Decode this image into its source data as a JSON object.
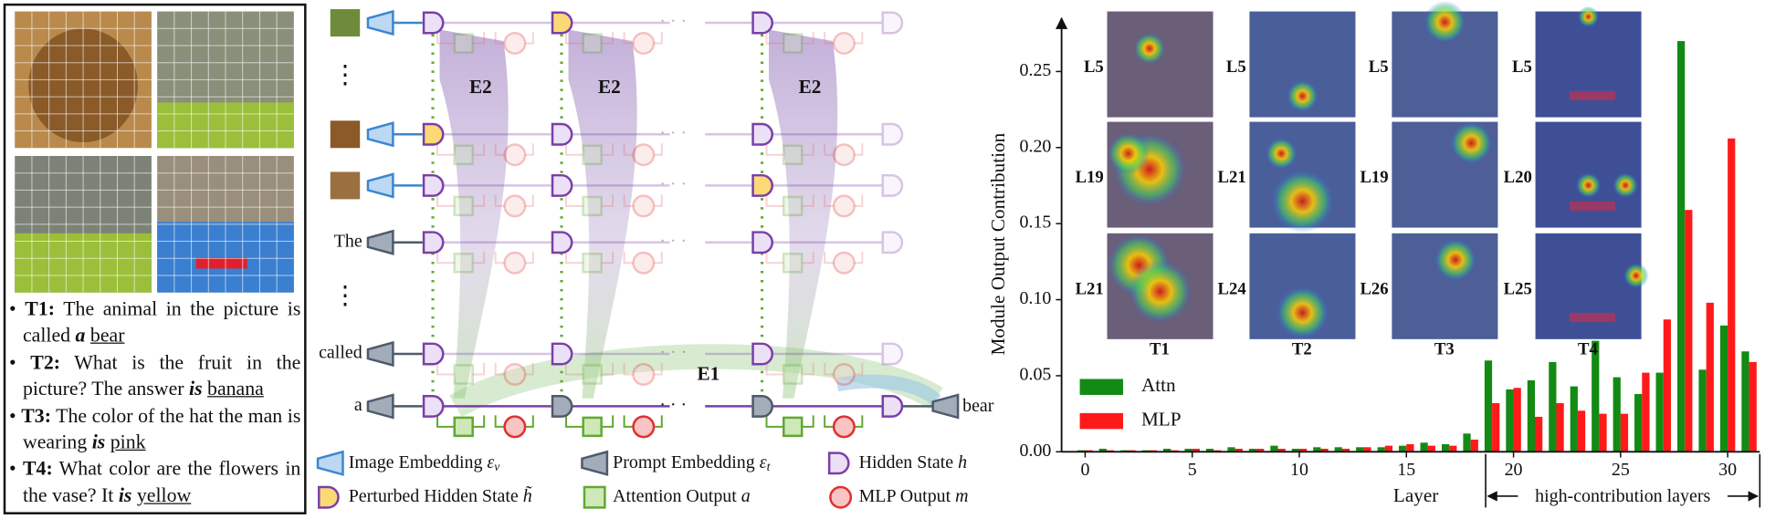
{
  "panel_left": {
    "items": [
      {
        "label": "T1:",
        "question": "The animal in the picture is called",
        "verb": "a",
        "answer": "bear"
      },
      {
        "label": "T2:",
        "question": "What is the fruit in the picture? The answer",
        "verb": "is",
        "answer": "banana"
      },
      {
        "label": "T3:",
        "question": "The color of the hat the man is wearing",
        "verb": "is",
        "answer": "pink"
      },
      {
        "label": "T4:",
        "question": "What color are the flowers in the vase? It",
        "verb": "is",
        "answer": "yellow"
      }
    ]
  },
  "diagram": {
    "tokens": [
      "The",
      "called",
      "a"
    ],
    "output": "bear",
    "e2_labels": [
      "E2",
      "E2",
      "E2"
    ],
    "e1_label": "E1",
    "legend": [
      {
        "text": "Image Embedding",
        "symbol": "ε",
        "sub": "v"
      },
      {
        "text": "Prompt Embedding",
        "symbol": "ε",
        "sub": "t"
      },
      {
        "text": "Hidden State",
        "symbol": "h"
      },
      {
        "text": "Perturbed Hidden State",
        "symbol": "h̃"
      },
      {
        "text": "Attention Output",
        "symbol": "a"
      },
      {
        "text": "MLP Output",
        "symbol": "m"
      }
    ]
  },
  "heatmaps": {
    "columns": [
      {
        "task": "T1",
        "layers": [
          "L5",
          "L19",
          "L21"
        ]
      },
      {
        "task": "T2",
        "layers": [
          "L5",
          "L21",
          "L24"
        ]
      },
      {
        "task": "T3",
        "layers": [
          "L5",
          "L19",
          "L26"
        ]
      },
      {
        "task": "T4",
        "layers": [
          "L5",
          "L20",
          "L25"
        ]
      }
    ]
  },
  "chart_data": {
    "type": "bar",
    "x_label": "Layer",
    "y_label": "Module Output Contribution",
    "annotation": "high-contribution layers",
    "categories": [
      0,
      1,
      2,
      3,
      4,
      5,
      6,
      7,
      8,
      9,
      10,
      11,
      12,
      13,
      14,
      15,
      16,
      17,
      18,
      19,
      20,
      21,
      22,
      23,
      24,
      25,
      26,
      27,
      28,
      29,
      30,
      31
    ],
    "series": [
      {
        "name": "Attn",
        "color": "#138a13",
        "values": [
          0.001,
          0.002,
          0.001,
          0.001,
          0.002,
          0.002,
          0.002,
          0.003,
          0.002,
          0.004,
          0.002,
          0.003,
          0.003,
          0.003,
          0.003,
          0.004,
          0.006,
          0.005,
          0.012,
          0.06,
          0.041,
          0.047,
          0.059,
          0.043,
          0.073,
          0.049,
          0.038,
          0.052,
          0.27,
          0.054,
          0.083,
          0.066
        ]
      },
      {
        "name": "MLP",
        "color": "#ff1a1a",
        "values": [
          0.001,
          0.001,
          0.001,
          0.001,
          0.001,
          0.002,
          0.001,
          0.002,
          0.002,
          0.002,
          0.002,
          0.002,
          0.002,
          0.003,
          0.004,
          0.005,
          0.004,
          0.004,
          0.008,
          0.032,
          0.042,
          0.023,
          0.032,
          0.027,
          0.025,
          0.025,
          0.052,
          0.087,
          0.159,
          0.098,
          0.206,
          0.059
        ]
      }
    ],
    "xlim": [
      -1.1,
      31.5
    ],
    "xticks": [
      0,
      5,
      10,
      15,
      20,
      25,
      30
    ],
    "ylim": [
      0,
      0.285
    ],
    "yticks": [
      {
        "value": 0,
        "label": "0.00"
      },
      {
        "value": 0.05,
        "label": "0.05"
      },
      {
        "value": 0.1,
        "label": "0.10"
      },
      {
        "value": 0.15,
        "label": "0.15"
      },
      {
        "value": 0.2,
        "label": "0.20"
      },
      {
        "value": 0.25,
        "label": "0.25"
      }
    ],
    "highlight_from": 18.7,
    "legend": "lower-left"
  }
}
